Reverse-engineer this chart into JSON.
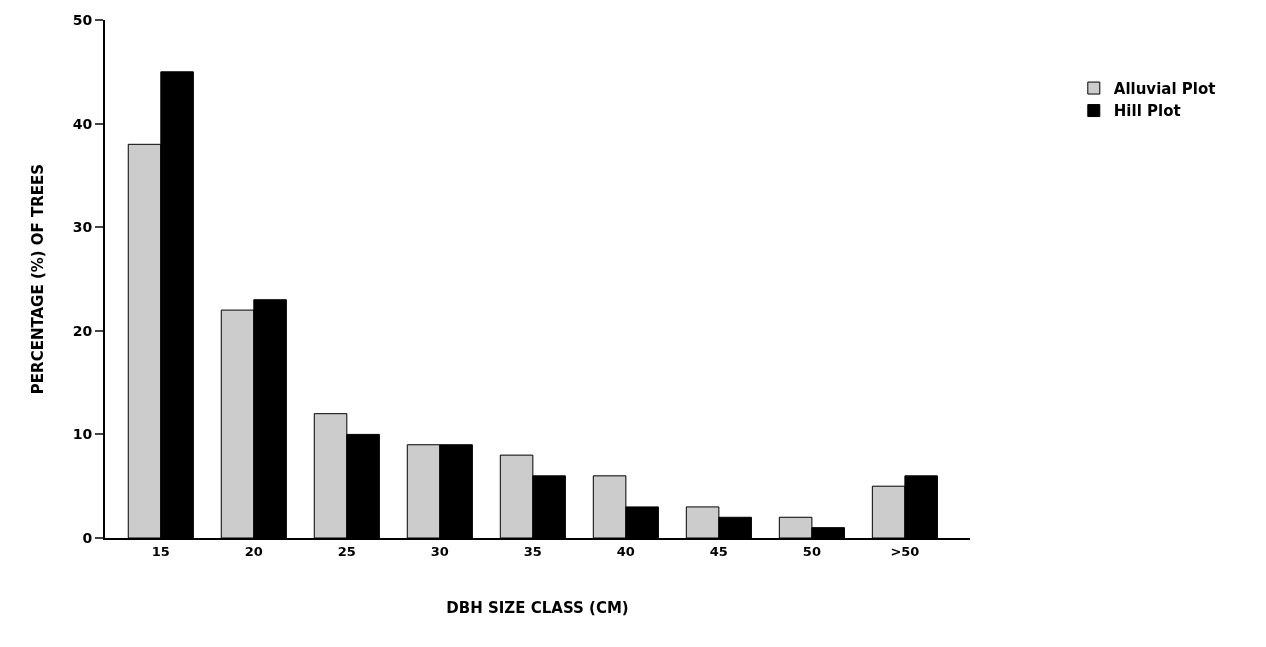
{
  "chart_data": {
    "type": "bar",
    "xlabel": "DBH SIZE CLASS (CM)",
    "ylabel": "PERCENTAGE (%) OF TREES",
    "categories": [
      "15",
      "20",
      "25",
      "30",
      "35",
      "40",
      "45",
      "50",
      ">50"
    ],
    "series": [
      {
        "name": "Alluvial Plot",
        "color": "#cccccc",
        "values": [
          38,
          22,
          12,
          9,
          8,
          6,
          3,
          2,
          5
        ]
      },
      {
        "name": "Hill Plot",
        "color": "#000000",
        "values": [
          45,
          23,
          10,
          9,
          6,
          3,
          2,
          1,
          6
        ]
      }
    ],
    "ylim": [
      0,
      50
    ],
    "yticks": [
      0,
      10,
      20,
      30,
      40,
      50
    ],
    "grid": false,
    "legend": "top right"
  }
}
